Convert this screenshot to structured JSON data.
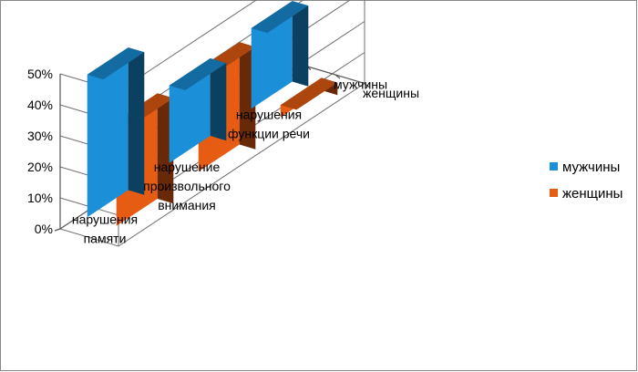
{
  "chart_data": {
    "type": "bar",
    "style": "3d-column",
    "title": "",
    "xlabel": "",
    "ylabel": "",
    "categories": [
      "нарушения памяти",
      "нарушение произвольного внимания",
      "нарушения функции речи"
    ],
    "category_lines": [
      [
        "нарушения",
        "памяти"
      ],
      [
        "нарушение",
        "произвольного",
        "внимания"
      ],
      [
        "нарушения",
        "функции речи"
      ]
    ],
    "series": [
      {
        "name": "мужчины",
        "values": [
          0.46,
          0.25,
          0.26
        ],
        "color": "#1b8fd8"
      },
      {
        "name": "женщины",
        "values": [
          0.34,
          0.33,
          0.04
        ],
        "color": "#e65c12"
      }
    ],
    "ylim": [
      0,
      0.5
    ],
    "yticks": [
      "0%",
      "10%",
      "20%",
      "30%",
      "40%",
      "50%"
    ],
    "depth_axis_labels": [
      "мужчины",
      "женщины"
    ],
    "legend": {
      "position": "right",
      "entries": [
        "мужчины",
        "женщины"
      ]
    },
    "grid": true
  }
}
